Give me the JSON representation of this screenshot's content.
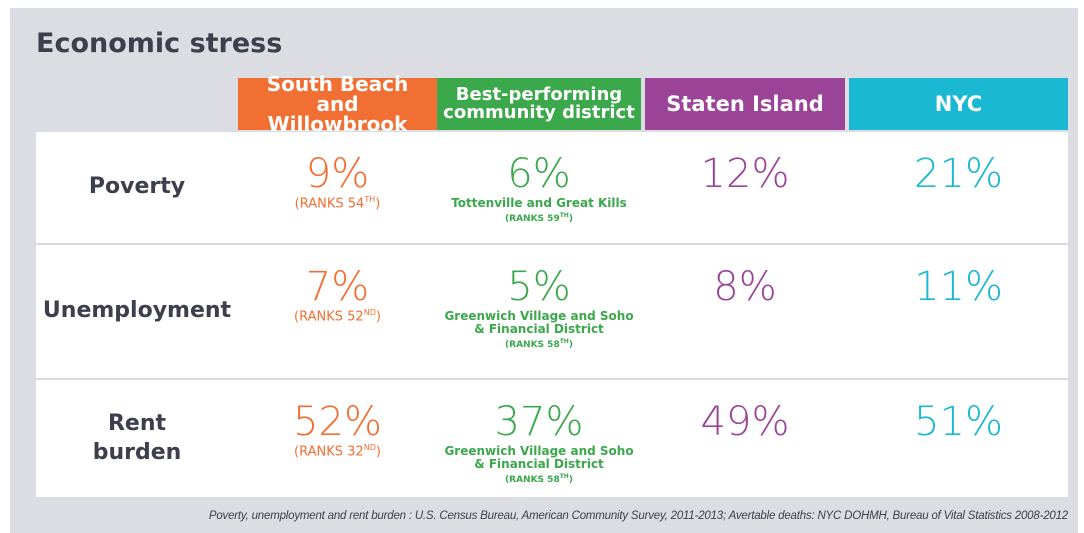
{
  "title": "Economic stress",
  "columns": [
    {
      "label": "South Beach and Willowbrook",
      "color": "#f26f33"
    },
    {
      "label": "Best-performing community district",
      "color": "#3aa84b"
    },
    {
      "label": "Staten Island",
      "color": "#9b4497"
    },
    {
      "label": "NYC",
      "color": "#1ab8d2"
    }
  ],
  "rows": [
    {
      "label": "Poverty",
      "cells": [
        {
          "value": "9%",
          "rank": [
            "(RANKS 54",
            "TH",
            ")"
          ]
        },
        {
          "value": "6%",
          "note": "Tottenville and Great Kills",
          "rank": [
            "(RANKS 59",
            "TH",
            ")"
          ]
        },
        {
          "value": "12%"
        },
        {
          "value": "21%"
        }
      ]
    },
    {
      "label": "Unemployment",
      "cells": [
        {
          "value": "7%",
          "rank": [
            "(RANKS 52",
            "ND",
            ")"
          ]
        },
        {
          "value": "5%",
          "note": "Greenwich Village and Soho & Financial District",
          "rank": [
            "(RANKS 58",
            "TH",
            ")"
          ]
        },
        {
          "value": "8%"
        },
        {
          "value": "11%"
        }
      ]
    },
    {
      "label": "Rent burden",
      "cells": [
        {
          "value": "52%",
          "rank": [
            "(RANKS 32",
            "ND",
            ")"
          ]
        },
        {
          "value": "37%",
          "note": "Greenwich Village and Soho & Financial District",
          "rank": [
            "(RANKS 58",
            "TH",
            ")"
          ]
        },
        {
          "value": "49%"
        },
        {
          "value": "51%"
        }
      ]
    }
  ],
  "footnote": "Poverty, unemployment and rent burden : U.S. Census Bureau, American Community Survey, 2011-2013; Avertable deaths: NYC DOHMH, Bureau of Vital Statistics 2008-2012"
}
